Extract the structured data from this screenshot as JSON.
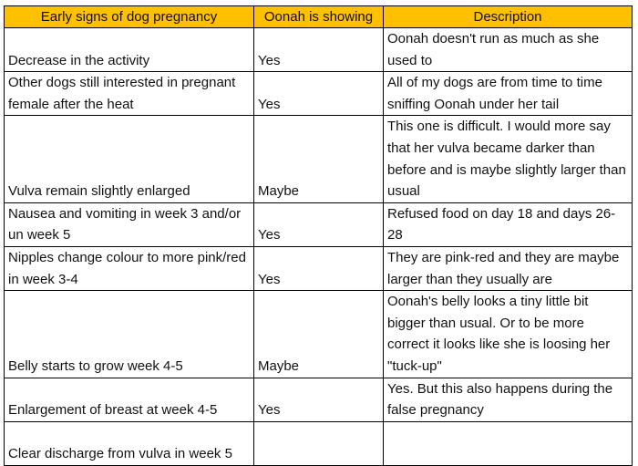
{
  "table": {
    "headers": [
      "Early signs of dog pregnancy",
      "Oonah is showing",
      "Description"
    ],
    "header_bg": "#ffc000",
    "rows": [
      {
        "sign": "Decrease in the activity",
        "showing": "Yes",
        "description": "Oonah doesn't run as much as she used to"
      },
      {
        "sign": "Other dogs still interested in pregnant female after the heat",
        "showing": "Yes",
        "description": "All of my dogs are from time to time sniffing Oonah under her tail"
      },
      {
        "sign": "Vulva remain slightly enlarged",
        "showing": "Maybe",
        "description": "This one is difficult. I would more say that her vulva became darker than before and is maybe slightly larger than usual"
      },
      {
        "sign": "Nausea and vomiting in week 3 and/or un week 5",
        "showing": "Yes",
        "description": "Refused food on day 18 and days 26-28"
      },
      {
        "sign": "Nipples change colour to more pink/red in week 3-4",
        "showing": "Yes",
        "description": "They are pink-red and they are maybe larger than they usually are"
      },
      {
        "sign": "Belly starts to grow week 4-5",
        "showing": "Maybe",
        "description": "Oonah's belly looks a tiny little bit bigger than usual. Or to be more correct it looks like she is loosing her \"tuck-up\""
      },
      {
        "sign": "Enlargement of breast at week 4-5",
        "showing": "Yes",
        "description": "Yes. But this also happens during the false pregnancy"
      },
      {
        "sign": "Clear discharge from vulva in week 5",
        "showing": "",
        "description": ""
      }
    ]
  }
}
